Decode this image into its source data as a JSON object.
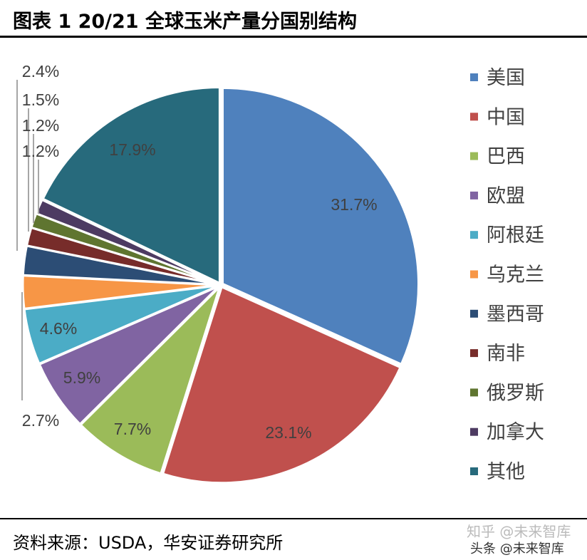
{
  "title": "图表 1 20/21 全球玉米产量分国别结构",
  "source": "资料来源：USDA，华安证券研究所",
  "watermark": "知乎 @未来智库",
  "watermark2": "头条 @未来智库",
  "chart_data": {
    "type": "pie",
    "legend_position": "right",
    "categories": [
      "美国",
      "中国",
      "巴西",
      "欧盟",
      "阿根廷",
      "乌克兰",
      "墨西哥",
      "南非",
      "俄罗斯",
      "加拿大",
      "其他"
    ],
    "values": [
      31.7,
      23.1,
      7.7,
      5.9,
      4.6,
      2.7,
      2.4,
      1.5,
      1.2,
      1.2,
      17.9
    ],
    "labels": [
      "31.7%",
      "23.1%",
      "7.7%",
      "5.9%",
      "4.6%",
      "2.7%",
      "2.4%",
      "1.5%",
      "1.2%",
      "1.2%",
      "17.9%"
    ],
    "colors": [
      "#4F81BD",
      "#C0504D",
      "#9BBB59",
      "#8064A2",
      "#4BACC6",
      "#F79646",
      "#2C4D75",
      "#772C2A",
      "#5F7530",
      "#4D3B62",
      "#276A7C"
    ]
  }
}
